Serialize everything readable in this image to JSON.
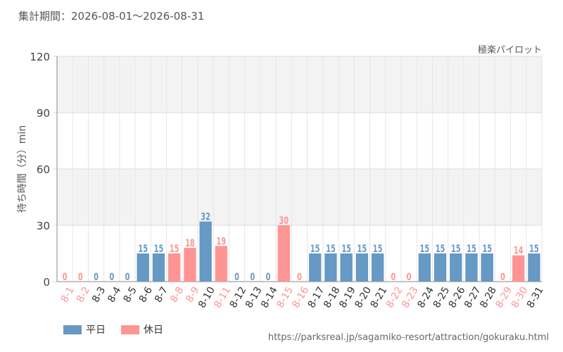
{
  "period_text": "集計期間：2026-08-01～2026-08-31",
  "attraction_name": "極楽パイロット",
  "source_url": "https://parksreal.jp/sagamiko-resort/attraction/gokuraku.html",
  "colors": {
    "weekday": "#6699c4",
    "holiday": "#ff9494"
  },
  "legend": {
    "weekday": "平日",
    "holiday": "休日"
  },
  "chart_data": {
    "type": "bar",
    "ylabel": "待ち時間（分）min",
    "ylim": [
      0,
      120
    ],
    "yticks": [
      "0",
      "30",
      "60",
      "90",
      "120"
    ],
    "categories": [
      "8-1",
      "8-2",
      "8-3",
      "8-4",
      "8-5",
      "8-6",
      "8-7",
      "8-8",
      "8-9",
      "8-10",
      "8-11",
      "8-12",
      "8-13",
      "8-14",
      "8-15",
      "8-16",
      "8-17",
      "8-18",
      "8-19",
      "8-20",
      "8-21",
      "8-22",
      "8-23",
      "8-24",
      "8-25",
      "8-26",
      "8-27",
      "8-28",
      "8-29",
      "8-30",
      "8-31"
    ],
    "values": [
      0,
      0,
      0,
      0,
      0,
      15,
      15,
      15,
      18,
      32,
      19,
      0,
      0,
      0,
      30,
      0,
      15,
      15,
      15,
      15,
      15,
      0,
      0,
      15,
      15,
      15,
      15,
      15,
      0,
      14,
      15
    ],
    "day_type": [
      "holiday",
      "holiday",
      "weekday",
      "weekday",
      "weekday",
      "weekday",
      "weekday",
      "holiday",
      "holiday",
      "weekday",
      "holiday",
      "weekday",
      "weekday",
      "weekday",
      "holiday",
      "holiday",
      "weekday",
      "weekday",
      "weekday",
      "weekday",
      "weekday",
      "holiday",
      "holiday",
      "weekday",
      "weekday",
      "weekday",
      "weekday",
      "weekday",
      "holiday",
      "holiday",
      "weekday"
    ],
    "grid": true,
    "legend_position": "bottom-left"
  }
}
